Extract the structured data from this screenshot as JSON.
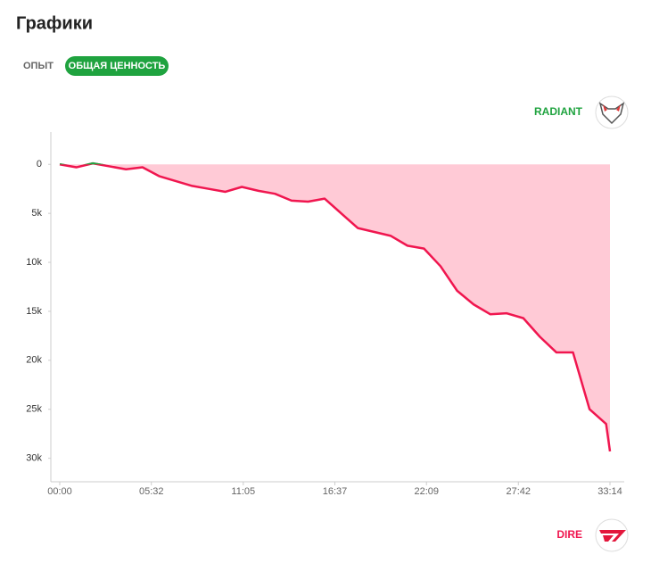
{
  "header": {
    "title": "Графики",
    "tabs": [
      {
        "label": "ОПЫТ",
        "active": false
      },
      {
        "label": "ОБЩАЯ ЦЕННОСТЬ",
        "active": true
      }
    ]
  },
  "teams": [
    {
      "name": "RADIANT",
      "color": "#1fa33f"
    },
    {
      "name": "DIRE",
      "color": "#f0164f"
    }
  ],
  "chart_data": {
    "type": "line",
    "x": [
      0,
      60,
      120,
      180,
      240,
      300,
      360,
      420,
      480,
      540,
      600,
      660,
      720,
      780,
      840,
      900,
      960,
      1020,
      1080,
      1140,
      1200,
      1260,
      1320,
      1380,
      1440,
      1500,
      1560,
      1620,
      1680,
      1740,
      1800,
      1860,
      1920,
      1980,
      1994
    ],
    "values": [
      0,
      300,
      -100,
      200,
      500,
      300,
      1200,
      1700,
      2200,
      2500,
      2800,
      2300,
      2700,
      3000,
      3700,
      3800,
      3500,
      5000,
      6500,
      6900,
      7300,
      8300,
      8600,
      10400,
      12900,
      14300,
      15300,
      15200,
      15700,
      17600,
      19200,
      19200,
      25000,
      26500,
      29300
    ],
    "area_color": "#ffcad6",
    "xlim": [
      0,
      1994
    ],
    "xticks": [
      {
        "value": 0,
        "label": "00:00"
      },
      {
        "value": 332,
        "label": "05:32"
      },
      {
        "value": 665,
        "label": "11:05"
      },
      {
        "value": 997,
        "label": "16:37"
      },
      {
        "value": 1329,
        "label": "22:09"
      },
      {
        "value": 1662,
        "label": "27:42"
      },
      {
        "value": 1994,
        "label": "33:14"
      }
    ],
    "ylim": [
      -3300,
      32400
    ],
    "yticks": [
      0,
      {
        "value": 5000,
        "label": "5k"
      },
      {
        "value": 10000,
        "label": "10k"
      },
      {
        "value": 15000,
        "label": "15k"
      },
      {
        "value": 20000,
        "label": "20k"
      },
      {
        "value": 25000,
        "label": "25k"
      },
      {
        "value": 30000,
        "label": "30k"
      }
    ]
  }
}
